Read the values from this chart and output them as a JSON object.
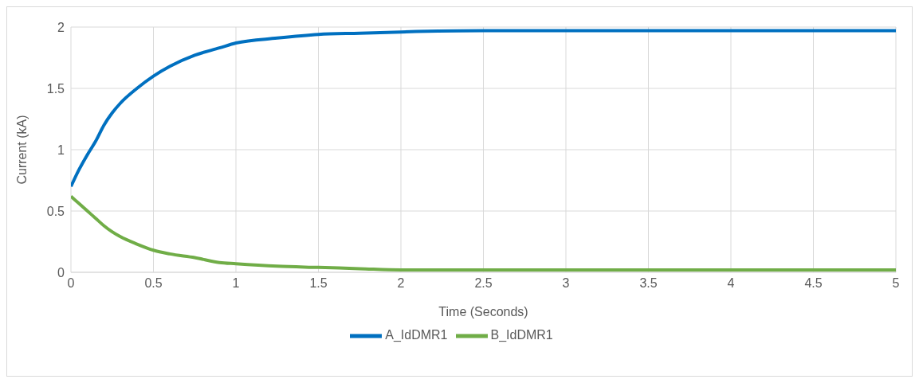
{
  "chart_data": {
    "type": "line",
    "xlabel": "Time (Seconds)",
    "ylabel": "Current (kA)",
    "xlim": [
      0,
      5
    ],
    "xticks": [
      0,
      0.5,
      1,
      1.5,
      2,
      2.5,
      3,
      3.5,
      4,
      4.5,
      5
    ],
    "ylim": [
      0,
      2
    ],
    "yticks": [
      0,
      0.5,
      1,
      1.5,
      2
    ],
    "grid": true,
    "legend": "bottom",
    "marker": "none",
    "series": [
      {
        "name": "A_IdDMR1",
        "color": "#0070c0",
        "x": [
          0,
          0.05,
          0.1,
          0.15,
          0.2,
          0.25,
          0.3,
          0.4,
          0.5,
          0.6,
          0.75,
          0.9,
          1,
          1.25,
          1.5,
          1.75,
          2,
          2.5,
          3,
          4,
          5
        ],
        "values": [
          0.7,
          0.84,
          0.96,
          1.07,
          1.2,
          1.3,
          1.38,
          1.5,
          1.6,
          1.68,
          1.77,
          1.83,
          1.87,
          1.91,
          1.94,
          1.95,
          1.96,
          1.97,
          1.97,
          1.97,
          1.97
        ]
      },
      {
        "name": "B_IdDMR1",
        "color": "#70ad47",
        "x": [
          0,
          0.05,
          0.1,
          0.15,
          0.2,
          0.25,
          0.3,
          0.4,
          0.5,
          0.6,
          0.75,
          0.9,
          1,
          1.25,
          1.5,
          1.75,
          2,
          2.5,
          3,
          4,
          5
        ],
        "values": [
          0.62,
          0.56,
          0.5,
          0.44,
          0.38,
          0.33,
          0.29,
          0.23,
          0.18,
          0.15,
          0.12,
          0.08,
          0.07,
          0.05,
          0.04,
          0.03,
          0.02,
          0.02,
          0.02,
          0.02,
          0.02
        ]
      }
    ]
  }
}
